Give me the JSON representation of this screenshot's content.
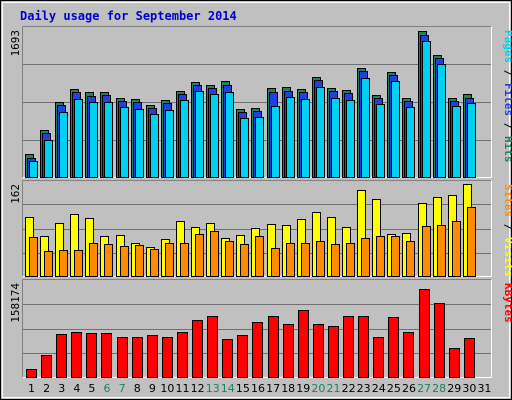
{
  "chart_data": {
    "type": "bar",
    "title": "Daily usage for September 2014",
    "categories": [
      "1",
      "2",
      "3",
      "4",
      "5",
      "6",
      "7",
      "8",
      "9",
      "10",
      "11",
      "12",
      "13",
      "14",
      "15",
      "16",
      "17",
      "18",
      "19",
      "20",
      "21",
      "22",
      "23",
      "24",
      "25",
      "26",
      "27",
      "28",
      "29",
      "30",
      "31"
    ],
    "weekend_days": [
      "6",
      "7",
      "13",
      "14",
      "20",
      "21",
      "27",
      "28"
    ],
    "colors": {
      "background": "#c0c0c0",
      "title": "#0000d0",
      "day_label": "#000000",
      "weekend_label": "#208060",
      "hits": "#208060",
      "files": "#2040e0",
      "pages": "#00d0f0",
      "visits": "#ffff00",
      "sites": "#ff8c00",
      "kbytes": "#ff0000"
    },
    "panels": [
      {
        "id": "hits-files-pages",
        "ymax_label": "1693",
        "ymax": 1693,
        "side_labels": [
          {
            "text": "Pages",
            "color": "#00d0f0"
          },
          {
            "text": " / ",
            "color": "#000000"
          },
          {
            "text": "Files",
            "color": "#2040e0"
          },
          {
            "text": " / ",
            "color": "#000000"
          },
          {
            "text": "Hits",
            "color": "#208060"
          }
        ],
        "series": [
          {
            "name": "Hits",
            "color": "#208060",
            "values": [
              254,
              528,
              852,
              990,
              960,
              955,
              895,
              877,
              816,
              869,
              968,
              1069,
              1035,
              1079,
              766,
              782,
              1007,
              1013,
              992,
              1132,
              1003,
              982,
              1231,
              931,
              1188,
              893,
              1650,
              1374,
              896,
              932,
              0
            ]
          },
          {
            "name": "Files",
            "color": "#2040e0",
            "values": [
              217,
              493,
              811,
              954,
              919,
              922,
              860,
              843,
              780,
              832,
              938,
              1040,
              1002,
              1040,
              729,
              745,
              965,
              976,
              960,
              1093,
              970,
              949,
              1194,
              893,
              1147,
              856,
              1605,
              1338,
              859,
              897,
              0
            ]
          },
          {
            "name": "Pages",
            "color": "#00d0f0",
            "values": [
              185,
              422,
              733,
              883,
              846,
              845,
              790,
              772,
              710,
              760,
              874,
              974,
              940,
              955,
              663,
              680,
              800,
              904,
              885,
              1018,
              895,
              866,
              1123,
              822,
              1078,
              787,
              1532,
              1277,
              806,
              836,
              0
            ]
          }
        ]
      },
      {
        "id": "visits-sites",
        "ymax_label": "162",
        "ymax": 162,
        "side_labels": [
          {
            "text": "Sites",
            "color": "#ff8c00"
          },
          {
            "text": " / ",
            "color": "#000000"
          },
          {
            "text": "Visits",
            "color": "#ffff00"
          }
        ],
        "series": [
          {
            "name": "Visits",
            "color": "#ffff00",
            "values": [
              100,
              68,
              90,
              106,
              99,
              69,
              70,
              57,
              49,
              63,
              94,
              84,
              90,
              64,
              70,
              82,
              88,
              87,
              97,
              109,
              100,
              84,
              146,
              132,
              72,
              73,
              124,
              135,
              138,
              157,
              0
            ]
          },
          {
            "name": "Sites",
            "color": "#ff8c00",
            "values": [
              66,
              43,
              45,
              44,
              56,
              54,
              51,
              53,
              46,
              56,
              57,
              72,
              76,
              60,
              54,
              68,
              48,
              56,
              56,
              60,
              54,
              56,
              64,
              68,
              68,
              60,
              85,
              87,
              94,
              117,
              0
            ]
          }
        ]
      },
      {
        "id": "kbytes",
        "ymax_label": "158174",
        "ymax": 158174,
        "side_labels": [
          {
            "text": "KBytes",
            "color": "#ff0000"
          }
        ],
        "series": [
          {
            "name": "KBytes",
            "color": "#ff0000",
            "values": [
              13000,
              36000,
              70000,
              74000,
              72000,
              71000,
              66000,
              66000,
              68000,
              66000,
              74000,
              93000,
              99000,
              62000,
              68000,
              90000,
              99000,
              87000,
              109000,
              87000,
              83000,
              100000,
              100000,
              66000,
              98000,
              73000,
              144000,
              120000,
              48000,
              64000,
              0
            ]
          }
        ]
      }
    ]
  }
}
